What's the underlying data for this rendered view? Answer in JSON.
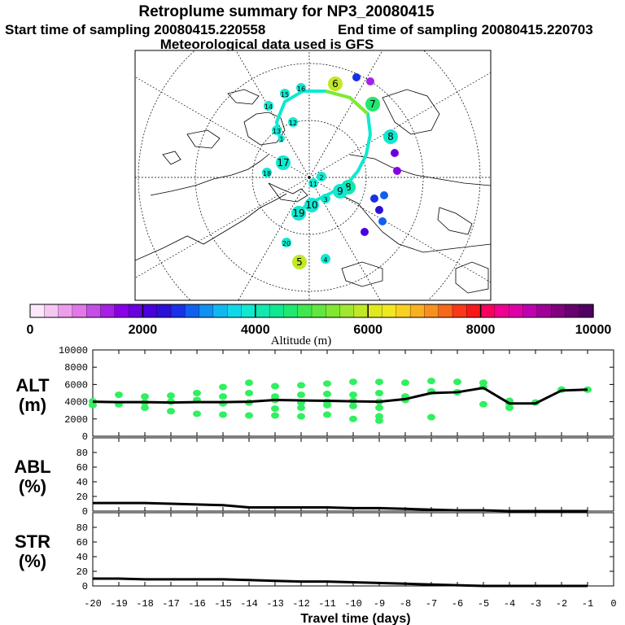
{
  "header": {
    "title": "Retroplume summary for NP3_20080415",
    "start_label": "Start time of sampling 20080415.220558",
    "end_label": "End time of sampling 20080415.220703",
    "met_label": "Meteorological data used is GFS"
  },
  "colorbar": {
    "ticks": [
      "0",
      "2000",
      "4000",
      "6000",
      "8000",
      "10000"
    ],
    "label": "Altitude (m)",
    "colors": [
      "#fde8fb",
      "#f5c7f3",
      "#ee9ded",
      "#e278e8",
      "#c64ee6",
      "#a720e6",
      "#8a00e6",
      "#6a00e0",
      "#4a00dc",
      "#2a10d8",
      "#1830e8",
      "#1060f0",
      "#1090f0",
      "#10b8f0",
      "#10d8e8",
      "#10e8d0",
      "#10e8b0",
      "#10e890",
      "#20e870",
      "#40e850",
      "#60e840",
      "#80e830",
      "#a0e830",
      "#c0e828",
      "#e0e820",
      "#f0e820",
      "#f8d020",
      "#f8b020",
      "#f89020",
      "#f86818",
      "#f83818",
      "#f81818",
      "#f80060",
      "#f00090",
      "#e000a8",
      "#c000b0",
      "#a00098",
      "#800080",
      "#680070",
      "#500060"
    ]
  },
  "map": {
    "markers": [
      {
        "label": "6",
        "color": "#c0e828",
        "size": "l"
      },
      {
        "label": "7",
        "color": "#20e870",
        "size": "l"
      },
      {
        "label": "8",
        "color": "#10e8d0",
        "size": "l"
      },
      {
        "label": "8",
        "color": "#10e8b0",
        "size": "l"
      },
      {
        "label": "9",
        "color": "#10e8d0",
        "size": "l"
      },
      {
        "label": "10",
        "color": "#10e8d0",
        "size": "l"
      },
      {
        "label": "11",
        "color": "#10e8d0",
        "size": "m"
      },
      {
        "label": "12",
        "color": "#10e8d0",
        "size": "m"
      },
      {
        "label": "13",
        "color": "#10e8d0",
        "size": "m"
      },
      {
        "label": "14",
        "color": "#10e8d0",
        "size": "m"
      },
      {
        "label": "15",
        "color": "#10e8d0",
        "size": "m"
      },
      {
        "label": "16",
        "color": "#10e8d0",
        "size": "m"
      },
      {
        "label": "17",
        "color": "#10e8d0",
        "size": "l"
      },
      {
        "label": "18",
        "color": "#10e8d0",
        "size": "m"
      },
      {
        "label": "19",
        "color": "#10e8d0",
        "size": "l"
      },
      {
        "label": "20",
        "color": "#10e8d0",
        "size": "m"
      },
      {
        "label": "5",
        "color": "#c0e828",
        "size": "l"
      },
      {
        "label": "4",
        "color": "#10e8d0",
        "size": "m"
      },
      {
        "label": "3",
        "color": "#10e8d0",
        "size": "m"
      },
      {
        "label": "2",
        "color": "#10e8d0",
        "size": "m"
      },
      {
        "label": "1",
        "color": "#10e8d0",
        "size": "s"
      }
    ]
  },
  "chart_data": [
    {
      "type": "scatter+line",
      "panel_label": [
        "ALT",
        "(m)"
      ],
      "ylim": [
        0,
        10000
      ],
      "yticks": [
        "0",
        "2000",
        "4000",
        "6000",
        "8000",
        "10000"
      ],
      "xlim": [
        -20,
        0
      ],
      "x": [
        -20,
        -19,
        -18,
        -17,
        -16,
        -15,
        -14,
        -13,
        -12,
        -11,
        -10,
        -9,
        -8,
        -7,
        -6,
        -5,
        -4,
        -3,
        -2,
        -1
      ],
      "line_values": [
        4000,
        3950,
        3950,
        3900,
        3950,
        3950,
        4000,
        4200,
        4150,
        4100,
        4050,
        4000,
        4300,
        5000,
        5100,
        5600,
        3800,
        3800,
        5300,
        5400
      ],
      "scatter_points": [
        [
          -20,
          4050
        ],
        [
          -20,
          3600
        ],
        [
          -19,
          4800
        ],
        [
          -19,
          3700
        ],
        [
          -18,
          4600
        ],
        [
          -18,
          3900
        ],
        [
          -18,
          3300
        ],
        [
          -17,
          4700
        ],
        [
          -17,
          4000
        ],
        [
          -17,
          2900
        ],
        [
          -16,
          5000
        ],
        [
          -16,
          4200
        ],
        [
          -16,
          2600
        ],
        [
          -15,
          5700
        ],
        [
          -15,
          4600
        ],
        [
          -15,
          3800
        ],
        [
          -15,
          2500
        ],
        [
          -14,
          6200
        ],
        [
          -14,
          5000
        ],
        [
          -14,
          3900
        ],
        [
          -14,
          2400
        ],
        [
          -13,
          5800
        ],
        [
          -13,
          4600
        ],
        [
          -13,
          4200
        ],
        [
          -13,
          3200
        ],
        [
          -13,
          2400
        ],
        [
          -12,
          5900
        ],
        [
          -12,
          4800
        ],
        [
          -12,
          3900
        ],
        [
          -12,
          3300
        ],
        [
          -12,
          2300
        ],
        [
          -11,
          6100
        ],
        [
          -11,
          4900
        ],
        [
          -11,
          4000
        ],
        [
          -11,
          3600
        ],
        [
          -11,
          2500
        ],
        [
          -10,
          6300
        ],
        [
          -10,
          4800
        ],
        [
          -10,
          4100
        ],
        [
          -10,
          3500
        ],
        [
          -10,
          2000
        ],
        [
          -9,
          6300
        ],
        [
          -9,
          5000
        ],
        [
          -9,
          4000
        ],
        [
          -9,
          3300
        ],
        [
          -9,
          2300
        ],
        [
          -9,
          1800
        ],
        [
          -8,
          6200
        ],
        [
          -8,
          4600
        ],
        [
          -8,
          4200
        ],
        [
          -7,
          6400
        ],
        [
          -7,
          5200
        ],
        [
          -7,
          2200
        ],
        [
          -6,
          6300
        ],
        [
          -6,
          5100
        ],
        [
          -5,
          6200
        ],
        [
          -5,
          5700
        ],
        [
          -5,
          3700
        ],
        [
          -4,
          4100
        ],
        [
          -4,
          3800
        ],
        [
          -4,
          3300
        ],
        [
          -3,
          3900
        ],
        [
          -2,
          5400
        ],
        [
          -1,
          5400
        ]
      ]
    },
    {
      "type": "line",
      "panel_label": [
        "ABL",
        "(%)"
      ],
      "ylim": [
        0,
        100
      ],
      "yticks": [
        "0",
        "20",
        "40",
        "60",
        "80"
      ],
      "xlim": [
        -20,
        0
      ],
      "x": [
        -20,
        -19,
        -18,
        -17,
        -16,
        -15,
        -14,
        -13,
        -12,
        -11,
        -10,
        -9,
        -8,
        -7,
        -6,
        -5,
        -4,
        -3,
        -2,
        -1
      ],
      "values": [
        11,
        11,
        11,
        10,
        9,
        8,
        5,
        5,
        5,
        5,
        4,
        4,
        3,
        2,
        1,
        1,
        0,
        0,
        0,
        0
      ]
    },
    {
      "type": "line",
      "panel_label": [
        "STR",
        "(%)"
      ],
      "ylim": [
        0,
        100
      ],
      "yticks": [
        "0",
        "20",
        "40",
        "60",
        "80"
      ],
      "xlim": [
        -20,
        0
      ],
      "x": [
        -20,
        -19,
        -18,
        -17,
        -16,
        -15,
        -14,
        -13,
        -12,
        -11,
        -10,
        -9,
        -8,
        -7,
        -6,
        -5,
        -4,
        -3,
        -2,
        -1
      ],
      "values": [
        10,
        10,
        9,
        9,
        9,
        9,
        8,
        7,
        6,
        6,
        5,
        4,
        3,
        2,
        1,
        0,
        0,
        0,
        0,
        0
      ]
    }
  ],
  "xaxis": {
    "ticks": [
      "-20",
      "-19",
      "-18",
      "-17",
      "-16",
      "-15",
      "-14",
      "-13",
      "-12",
      "-11",
      "-10",
      "-9",
      "-8",
      "-7",
      "-6",
      "-5",
      "-4",
      "-3",
      "-2",
      "-1",
      "0"
    ],
    "label": "Travel time (days)"
  }
}
